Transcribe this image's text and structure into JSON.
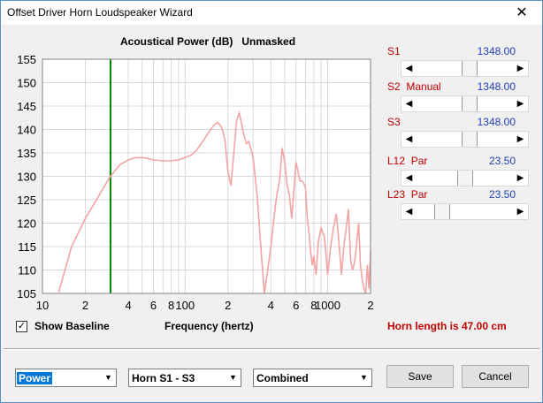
{
  "window": {
    "title": "Offset Driver Horn Loudspeaker Wizard",
    "close_glyph": "✕"
  },
  "chart_data": {
    "type": "line",
    "title": "Acoustical Power (dB)   Unmasked",
    "xlabel": "Frequency (hertz)",
    "ylabel": "",
    "x_scale": "log",
    "xlim": [
      10,
      2000
    ],
    "ylim": [
      105,
      155
    ],
    "y_ticks": [
      "155",
      "150",
      "145",
      "140",
      "135",
      "130",
      "125",
      "120",
      "115",
      "110",
      "105"
    ],
    "x_ticks": [
      "10",
      "2",
      "4",
      "6",
      "8",
      "100",
      "2",
      "4",
      "6",
      "8",
      "1000",
      "2"
    ],
    "marker_freq": 30,
    "series": [
      {
        "color": "#f4a3a3",
        "x": [
          13,
          16,
          20,
          25,
          30,
          35,
          40,
          45,
          50,
          55,
          60,
          70,
          80,
          90,
          100,
          110,
          120,
          130,
          140,
          150,
          160,
          170,
          180,
          190,
          200,
          210,
          220,
          230,
          240,
          250,
          260,
          270,
          280,
          300,
          320,
          340,
          360,
          380,
          400,
          420,
          440,
          460,
          480,
          500,
          520,
          540,
          560,
          580,
          600,
          620,
          640,
          660,
          680,
          700,
          720,
          740,
          760,
          780,
          800,
          830,
          860,
          900,
          950,
          1000,
          1050,
          1100,
          1150,
          1200,
          1250,
          1300,
          1350,
          1400,
          1450,
          1500,
          1550,
          1600,
          1650,
          1700,
          1750,
          1800,
          1850,
          1900,
          1950,
          2000
        ],
        "y": [
          105.2,
          115,
          121,
          126,
          130,
          132.5,
          133.5,
          134,
          134,
          133.8,
          133.5,
          133.3,
          133.3,
          133.5,
          134,
          134.5,
          135.5,
          137,
          138.5,
          139.8,
          141,
          141.5,
          140.5,
          138,
          131,
          128,
          135,
          142,
          143.5,
          141,
          138.5,
          137,
          137.5,
          134,
          126,
          115,
          105,
          110,
          115,
          121,
          126,
          129,
          136,
          133,
          128,
          126,
          121,
          127,
          133,
          131,
          129,
          129,
          128.5,
          127.5,
          121,
          118,
          114,
          111,
          113,
          109,
          116,
          119,
          117,
          109,
          115,
          119,
          122,
          116,
          109,
          115,
          119,
          123,
          112,
          110,
          112,
          116,
          120,
          111,
          108,
          106,
          105,
          111,
          106,
          114
        ]
      }
    ]
  },
  "sliders": [
    {
      "label": "S1",
      "value": "1348.00",
      "position": 0.56
    },
    {
      "label": "S2  Manual",
      "value": "1348.00",
      "position": 0.56
    },
    {
      "label": "S3",
      "value": "1348.00",
      "position": 0.56
    },
    {
      "label": "L12  Par",
      "value": "23.50",
      "position": 0.51
    },
    {
      "label": "L23  Par",
      "value": "23.50",
      "position": 0.22
    }
  ],
  "show_baseline": {
    "label": "Show Baseline",
    "checked": true,
    "check_glyph": "✓"
  },
  "horn_length": "Horn length is 47.00 cm",
  "controls": {
    "quantity_select": "Power",
    "range_select": "Horn S1 - S3",
    "mode_select": "Combined",
    "save_label": "Save",
    "cancel_label": "Cancel",
    "dropdown_glyph": "▼"
  }
}
